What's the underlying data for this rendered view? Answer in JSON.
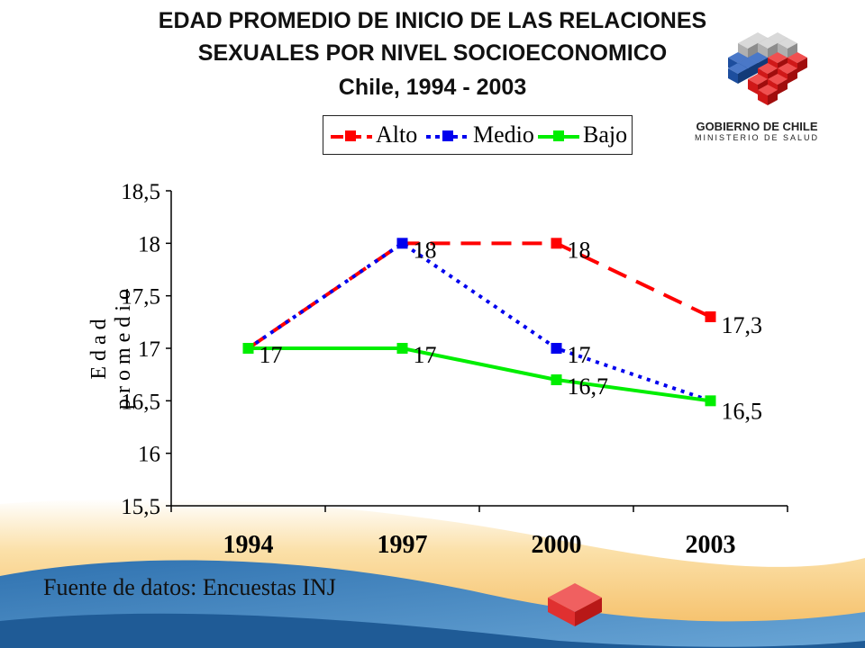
{
  "title": {
    "line1": "EDAD PROMEDIO DE INICIO DE LAS RELACIONES",
    "line2": "SEXUALES  POR NIVEL SOCIOECONOMICO",
    "line3": "Chile, 1994 - 2003"
  },
  "logo": {
    "name": "GOBIERNO DE CHILE",
    "subtitle": "MINISTERIO DE SALUD"
  },
  "source": "Fuente de datos:  Encuestas INJ",
  "colors": {
    "alto": "#ff0000",
    "medio": "#0000ee",
    "bajo": "#00ee00",
    "background_wave_light": "#f7c46a",
    "background_wave_blue": "#4a8ec4"
  },
  "chart_data": {
    "type": "line",
    "categories": [
      "1994",
      "1997",
      "2000",
      "2003"
    ],
    "ylabel": "Edad promedio",
    "ylim": [
      15.5,
      18.5
    ],
    "yticks": [
      "15,5",
      "16",
      "16,5",
      "17",
      "17,5",
      "18",
      "18,5"
    ],
    "legend_position": "top",
    "series": [
      {
        "name": "Alto",
        "key": "alto",
        "style": "dashed",
        "values": [
          17,
          18,
          18,
          17.3
        ],
        "labels": [
          "",
          "",
          "18",
          "17,3"
        ]
      },
      {
        "name": "Medio",
        "key": "medio",
        "style": "dotted",
        "values": [
          17,
          18,
          17,
          16.5
        ],
        "labels": [
          "",
          "18",
          "17",
          ""
        ]
      },
      {
        "name": "Bajo",
        "key": "bajo",
        "style": "solid",
        "values": [
          17,
          17,
          16.7,
          16.5
        ],
        "labels": [
          "17",
          "17",
          "16,7",
          "16,5"
        ]
      }
    ]
  }
}
